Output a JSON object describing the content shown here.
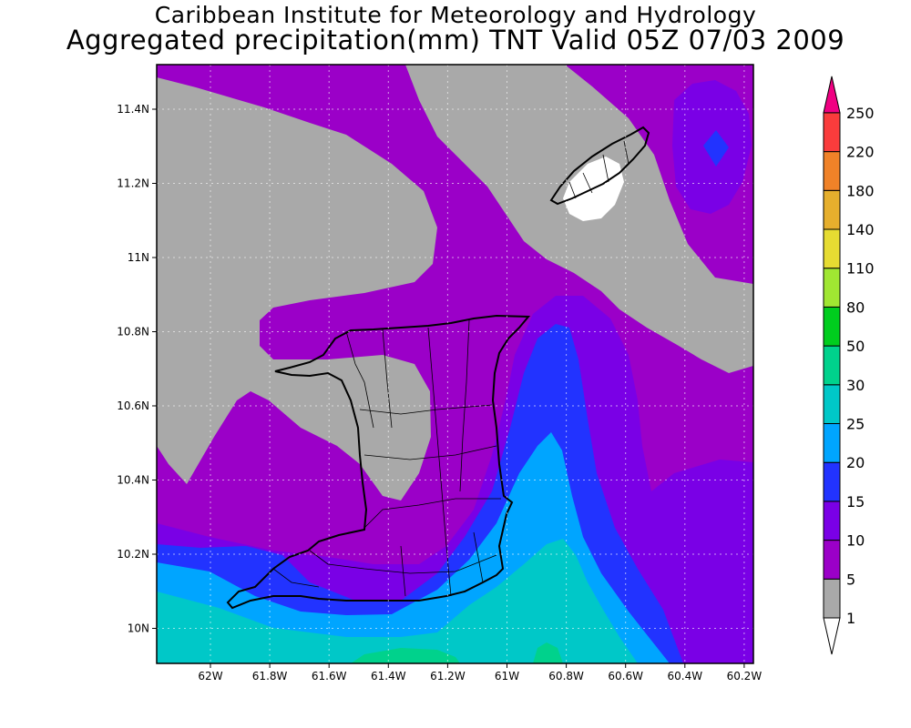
{
  "title": {
    "line1": "Caribbean Institute for Meteorology and Hydrology",
    "line2": "Aggregated precipitation(mm) TNT Valid 05Z 07/03 2009"
  },
  "map": {
    "lon_ticks": [
      "62W",
      "61.8W",
      "61.6W",
      "61.4W",
      "61.2W",
      "61W",
      "60.8W",
      "60.6W",
      "60.4W",
      "60.2W"
    ],
    "lat_ticks": [
      "11.4N",
      "11.2N",
      "11N",
      "10.8N",
      "10.6N",
      "10.4N",
      "10.2N",
      "10N"
    ]
  },
  "legend": {
    "levels": [
      {
        "label": "1",
        "color": "#ffffff"
      },
      {
        "label": "5",
        "color": "#a9a9a9"
      },
      {
        "label": "10",
        "color": "#9b00c8"
      },
      {
        "label": "15",
        "color": "#7a00e6"
      },
      {
        "label": "20",
        "color": "#2233ff"
      },
      {
        "label": "25",
        "color": "#00a5ff"
      },
      {
        "label": "30",
        "color": "#00c8c8"
      },
      {
        "label": "50",
        "color": "#00d28c"
      },
      {
        "label": "80",
        "color": "#00cd1e"
      },
      {
        "label": "110",
        "color": "#a0e632"
      },
      {
        "label": "140",
        "color": "#e6dc32"
      },
      {
        "label": "180",
        "color": "#e6af2d"
      },
      {
        "label": "220",
        "color": "#f08228"
      },
      {
        "label": "250",
        "color": "#fa3c3c"
      }
    ],
    "top_color": "#f00082",
    "bottom_color": "#ffffff"
  }
}
